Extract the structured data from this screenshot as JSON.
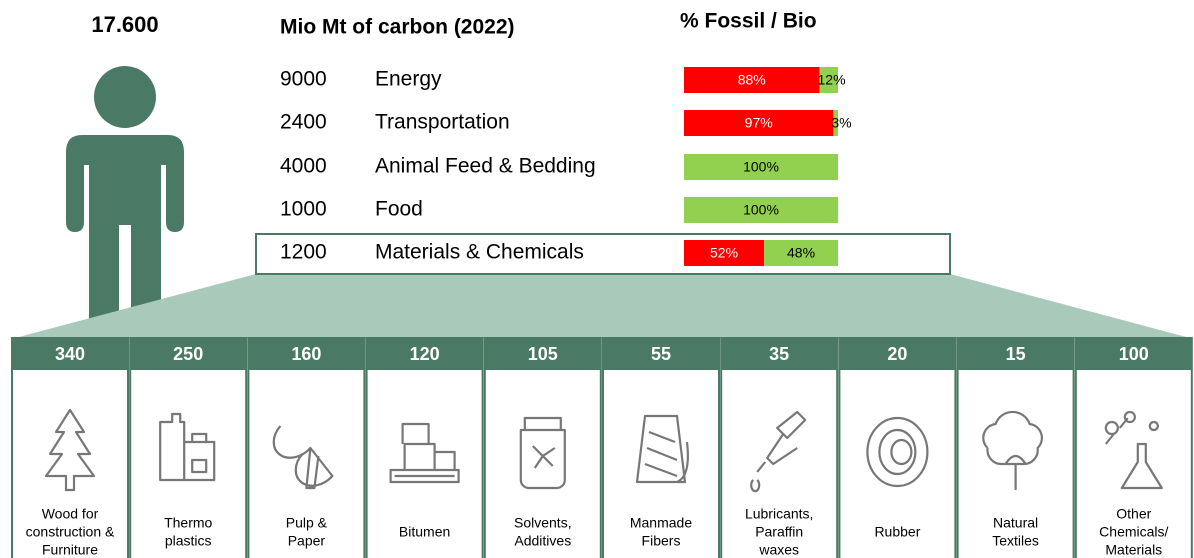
{
  "total": "17.600",
  "headers": {
    "carbon": "Mio Mt of carbon (2022)",
    "split": "% Fossil / Bio"
  },
  "sectors": [
    {
      "amount": 9000,
      "name": "Energy",
      "fossil": {
        "value": 88,
        "label": "88%"
      },
      "bio": {
        "value": 12,
        "label": "12%"
      }
    },
    {
      "amount": 2400,
      "name": "Transportation",
      "fossil": {
        "value": 97,
        "label": "97%"
      },
      "bio": {
        "value": 3,
        "label": "3%"
      }
    },
    {
      "amount": 4000,
      "name": "Animal Feed & Bedding",
      "fossil": {
        "value": 0
      },
      "bio": {
        "value": 100,
        "label": "100%"
      }
    },
    {
      "amount": 1000,
      "name": "Food",
      "fossil": {
        "value": 0
      },
      "bio": {
        "value": 100,
        "label": "100%"
      }
    },
    {
      "amount": 1200,
      "name": "Materials & Chemicals",
      "fossil": {
        "value": 52,
        "label": "52%"
      },
      "bio": {
        "value": 48,
        "label": "48%"
      }
    }
  ],
  "materials": [
    {
      "amount": 340,
      "label": [
        "Wood for",
        "construction &",
        "Furniture"
      ]
    },
    {
      "amount": 250,
      "label": [
        "Thermo",
        "plastics"
      ]
    },
    {
      "amount": 160,
      "label": [
        "Pulp &",
        "Paper"
      ]
    },
    {
      "amount": 120,
      "label": [
        "Bitumen"
      ]
    },
    {
      "amount": 105,
      "label": [
        "Solvents,",
        "Additives"
      ]
    },
    {
      "amount": 55,
      "label": [
        "Manmade",
        "Fibers"
      ]
    },
    {
      "amount": 35,
      "label": [
        "Lubricants,",
        "Paraffin",
        "waxes"
      ]
    },
    {
      "amount": 20,
      "label": [
        "Rubber"
      ]
    },
    {
      "amount": 15,
      "label": [
        "Natural",
        "Textiles"
      ]
    },
    {
      "amount": 100,
      "label": [
        "Other",
        "Chemicals/",
        "Materials"
      ]
    }
  ]
}
